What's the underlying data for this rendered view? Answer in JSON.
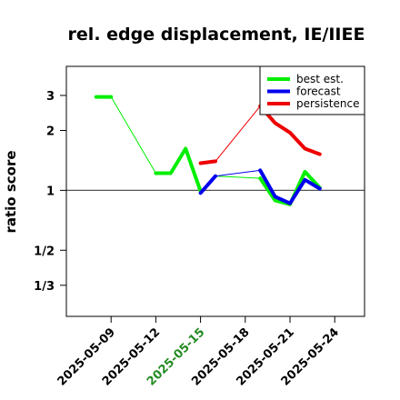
{
  "chart_data": {
    "type": "line",
    "title": "rel. edge displacement, IE/IIEE",
    "ylabel": "ratio score",
    "xlabel": "",
    "y_scale": "log",
    "ylim": [
      0.2326,
      4.2
    ],
    "y_ticks": [
      {
        "value": 3,
        "label": "3"
      },
      {
        "value": 2,
        "label": "2"
      },
      {
        "value": 1,
        "label": "1"
      },
      {
        "value": 0.5,
        "label": "1/2"
      },
      {
        "value": 0.3333,
        "label": "1/3"
      }
    ],
    "xlim": [
      "2025-05-06",
      "2025-05-26"
    ],
    "x_ticks": [
      {
        "value": "2025-05-09",
        "label": "2025-05-09",
        "color": "#000000"
      },
      {
        "value": "2025-05-12",
        "label": "2025-05-12",
        "color": "#000000"
      },
      {
        "value": "2025-05-15",
        "label": "2025-05-15",
        "color": "#228B22"
      },
      {
        "value": "2025-05-18",
        "label": "2025-05-18",
        "color": "#000000"
      },
      {
        "value": "2025-05-21",
        "label": "2025-05-21",
        "color": "#000000"
      },
      {
        "value": "2025-05-24",
        "label": "2025-05-24",
        "color": "#000000"
      }
    ],
    "reference_line": 1,
    "legend_position": "top-right",
    "series": [
      {
        "name": "best est.",
        "color": "#00ee00",
        "segments": [
          {
            "width": "thick",
            "points": [
              [
                "2025-05-08",
                2.95
              ],
              [
                "2025-05-09",
                2.95
              ]
            ]
          },
          {
            "width": "thin",
            "points": [
              [
                "2025-05-09",
                2.95
              ],
              [
                "2025-05-12",
                1.22
              ]
            ]
          },
          {
            "width": "thick",
            "points": [
              [
                "2025-05-12",
                1.22
              ],
              [
                "2025-05-13",
                1.22
              ],
              [
                "2025-05-14",
                1.62
              ],
              [
                "2025-05-15",
                0.99
              ]
            ]
          },
          {
            "width": "thin",
            "points": [
              [
                "2025-05-15",
                0.99
              ],
              [
                "2025-05-16",
                1.18
              ],
              [
                "2025-05-19",
                1.15
              ]
            ]
          },
          {
            "width": "thick",
            "points": [
              [
                "2025-05-19",
                1.15
              ],
              [
                "2025-05-20",
                0.89
              ],
              [
                "2025-05-21",
                0.85
              ],
              [
                "2025-05-22",
                1.24
              ],
              [
                "2025-05-23",
                1.03
              ]
            ]
          }
        ]
      },
      {
        "name": "forecast",
        "color": "#0000ee",
        "segments": [
          {
            "width": "thick",
            "points": [
              [
                "2025-05-15",
                0.97
              ],
              [
                "2025-05-16",
                1.18
              ]
            ]
          },
          {
            "width": "thin",
            "points": [
              [
                "2025-05-16",
                1.18
              ],
              [
                "2025-05-19",
                1.26
              ]
            ]
          },
          {
            "width": "thick",
            "points": [
              [
                "2025-05-19",
                1.26
              ],
              [
                "2025-05-20",
                0.93
              ],
              [
                "2025-05-21",
                0.86
              ],
              [
                "2025-05-22",
                1.13
              ],
              [
                "2025-05-23",
                1.02
              ]
            ]
          }
        ]
      },
      {
        "name": "persistence",
        "color": "#ee0000",
        "segments": [
          {
            "width": "thick",
            "points": [
              [
                "2025-05-15",
                1.37
              ],
              [
                "2025-05-16",
                1.4
              ]
            ]
          },
          {
            "width": "thin",
            "points": [
              [
                "2025-05-16",
                1.4
              ],
              [
                "2025-05-19",
                2.65
              ]
            ]
          },
          {
            "width": "thick",
            "points": [
              [
                "2025-05-19",
                2.65
              ],
              [
                "2025-05-20",
                2.18
              ],
              [
                "2025-05-21",
                1.95
              ],
              [
                "2025-05-22",
                1.62
              ],
              [
                "2025-05-23",
                1.52
              ]
            ]
          }
        ]
      }
    ]
  }
}
